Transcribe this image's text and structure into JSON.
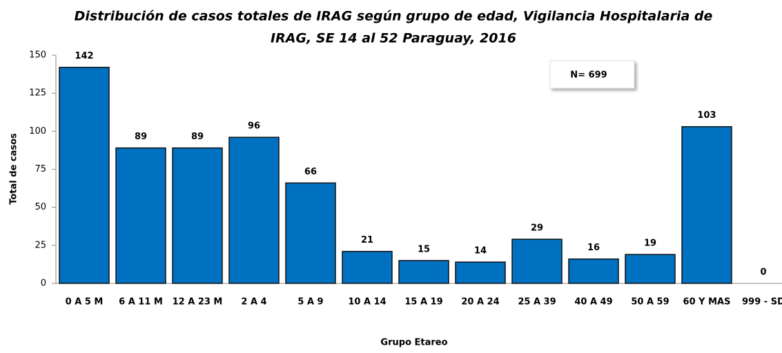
{
  "chart_data": {
    "type": "bar",
    "title": [
      "Distribución de casos totales de IRAG según grupo de edad, Vigilancia Hospitalaria de",
      "IRAG, SE 14 al 52 Paraguay, 2016"
    ],
    "annotation": "N= 699",
    "xlabel": "Grupo Etareo",
    "ylabel": "Total de casos",
    "categories": [
      "0 A 5 M",
      "6 A 11 M",
      "12 A 23 M",
      "2 A 4",
      "5 A 9",
      "10 A 14",
      "15 A 19",
      "20 A 24",
      "25 A 39",
      "40 A 49",
      "50 A 59",
      "60 Y MAS",
      "999 - SD"
    ],
    "values": [
      142,
      89,
      89,
      96,
      66,
      21,
      15,
      14,
      29,
      16,
      19,
      103,
      0
    ],
    "color": "#0070c0",
    "ylim": [
      0,
      150
    ],
    "yticks": [
      0,
      25,
      50,
      75,
      100,
      125,
      150
    ],
    "grid": false
  }
}
